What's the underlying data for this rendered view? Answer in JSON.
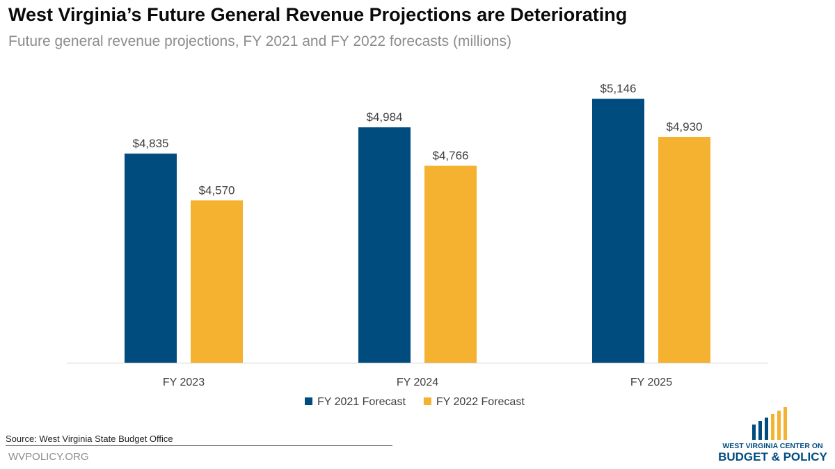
{
  "title": "West Virginia’s Future General Revenue Projections are Deteriorating",
  "subtitle": "Future general revenue projections, FY 2021 and FY 2022 forecasts (millions)",
  "source": "Source: West Virginia State Budget Office",
  "website": "WVPOLICY.ORG",
  "logo": {
    "line1": "WEST VIRGINIA CENTER ON",
    "line2": "BUDGET & POLICY",
    "colors": {
      "blue": "#004c7f",
      "gold": "#f5b130"
    }
  },
  "chart_data": {
    "type": "bar",
    "categories": [
      "FY 2023",
      "FY 2024",
      "FY 2025"
    ],
    "series": [
      {
        "name": "FY 2021 Forecast",
        "values": [
          4835,
          4984,
          5146
        ],
        "labels": [
          "$4,835",
          "$4,984",
          "$5,146"
        ],
        "color": "#004c7f"
      },
      {
        "name": "FY 2022 Forecast",
        "values": [
          4570,
          4766,
          4930
        ],
        "labels": [
          "$4,570",
          "$4,766",
          "$4,930"
        ],
        "color": "#f5b130"
      }
    ],
    "ylim": [
      3650,
      5300
    ],
    "grid": false,
    "legend": "bottom"
  }
}
